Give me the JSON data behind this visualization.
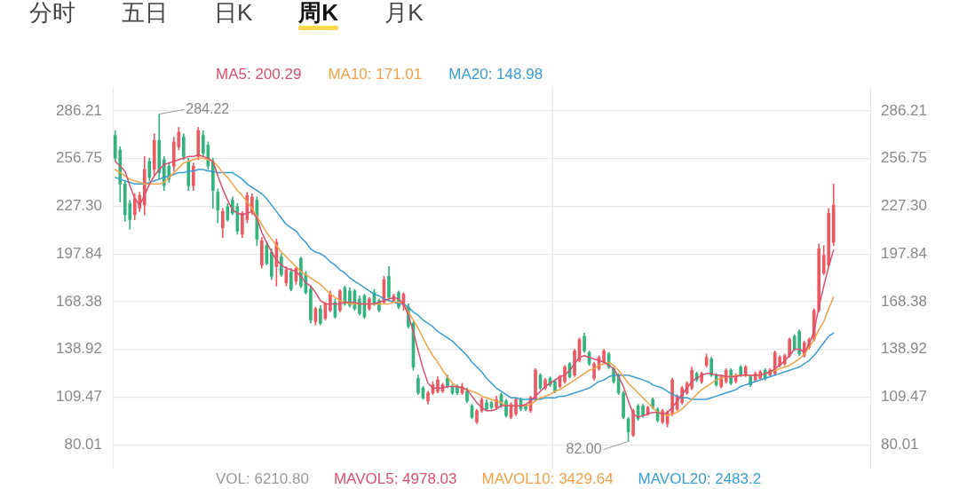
{
  "chart_data": {
    "type": "candlestick",
    "categories": [
      null,
      null,
      null,
      null,
      null,
      null,
      null,
      null,
      null,
      null,
      null,
      null,
      null,
      null,
      null,
      null,
      null,
      null,
      null,
      null,
      null,
      null,
      null,
      null,
      null,
      null,
      null,
      null,
      null,
      null,
      null,
      null,
      null,
      null,
      null,
      null,
      null,
      null,
      null,
      null,
      null,
      null,
      null,
      null,
      null,
      null,
      null,
      null,
      null,
      null,
      null,
      null,
      null,
      null,
      null,
      null,
      null,
      null,
      null,
      null,
      null,
      null,
      null,
      null,
      null,
      null,
      null,
      null,
      null,
      null,
      null,
      null,
      null,
      null,
      null,
      null,
      null,
      null,
      null,
      null,
      null,
      null,
      null,
      null,
      null,
      null,
      null,
      null,
      null,
      null,
      null,
      null,
      null,
      null,
      null,
      null,
      null,
      null,
      null,
      null,
      null,
      null,
      null,
      null,
      null,
      null,
      null,
      null,
      null,
      null,
      null,
      null,
      null,
      null,
      null,
      null,
      null,
      null,
      null,
      null,
      null,
      null,
      null,
      null,
      null,
      null,
      null,
      null,
      null,
      null,
      null,
      null,
      null,
      null,
      null,
      null,
      null,
      null,
      null,
      null,
      null,
      null,
      null,
      null,
      null,
      null,
      null,
      null,
      null,
      null,
      null,
      null,
      null,
      null,
      null
    ],
    "ohlc": [
      [
        271,
        274,
        255,
        257
      ],
      [
        262,
        264,
        230,
        241
      ],
      [
        241,
        243,
        218,
        222
      ],
      [
        229,
        231,
        213,
        219
      ],
      [
        222,
        235,
        219,
        232
      ],
      [
        226,
        236,
        224,
        234
      ],
      [
        228,
        258,
        222,
        250
      ],
      [
        255,
        257,
        243,
        245
      ],
      [
        250,
        272,
        246,
        268
      ],
      [
        268,
        284.22,
        244,
        248
      ],
      [
        256,
        258,
        237,
        240
      ],
      [
        252,
        254,
        242,
        244
      ],
      [
        252,
        270,
        249,
        267
      ],
      [
        264,
        276,
        262,
        273
      ],
      [
        270,
        272,
        256,
        258
      ],
      [
        255,
        257,
        237,
        240
      ],
      [
        240,
        254,
        237,
        252
      ],
      [
        258,
        276,
        256,
        274
      ],
      [
        271,
        274,
        258,
        260
      ],
      [
        265,
        267,
        250,
        252
      ],
      [
        255,
        257,
        226,
        237
      ],
      [
        236,
        238,
        217,
        225
      ],
      [
        214,
        226,
        208,
        224
      ],
      [
        227,
        229,
        218,
        219
      ],
      [
        231,
        233,
        222,
        223
      ],
      [
        227,
        229,
        210,
        212
      ],
      [
        210,
        224,
        208,
        223
      ],
      [
        219,
        236,
        217,
        234
      ],
      [
        224,
        235,
        222,
        233
      ],
      [
        231,
        233,
        203,
        207
      ],
      [
        191,
        208,
        189,
        206
      ],
      [
        203,
        205,
        191,
        192
      ],
      [
        199,
        201,
        182,
        184
      ],
      [
        190,
        207,
        178,
        205
      ],
      [
        196,
        198,
        184,
        185
      ],
      [
        180,
        190,
        178,
        188
      ],
      [
        187,
        189,
        175,
        176
      ],
      [
        181,
        190,
        179,
        189
      ],
      [
        195,
        196,
        177,
        178
      ],
      [
        185,
        187,
        173,
        174
      ],
      [
        176,
        178,
        155,
        157
      ],
      [
        156,
        165,
        154,
        164
      ],
      [
        164,
        166,
        154,
        155
      ],
      [
        158,
        168,
        157,
        167
      ],
      [
        163,
        175,
        162,
        173
      ],
      [
        168,
        170,
        158,
        159
      ],
      [
        163,
        176,
        162,
        175
      ],
      [
        177,
        178,
        166,
        167
      ],
      [
        175,
        177,
        165,
        166
      ],
      [
        175,
        176,
        163,
        164
      ],
      [
        170,
        172,
        160,
        161
      ],
      [
        172,
        173,
        158,
        159
      ],
      [
        164,
        171,
        163,
        170
      ],
      [
        174,
        176,
        166,
        167
      ],
      [
        169,
        170,
        162,
        163
      ],
      [
        168,
        184,
        167,
        182
      ],
      [
        184,
        190,
        170,
        171
      ],
      [
        169,
        173,
        168,
        172
      ],
      [
        174,
        175,
        164,
        165
      ],
      [
        166,
        174,
        163,
        173
      ],
      [
        165,
        167,
        152,
        153
      ],
      [
        155,
        156,
        126,
        128
      ],
      [
        121,
        123,
        111,
        112
      ],
      [
        115,
        116,
        108,
        109
      ],
      [
        107,
        113,
        105,
        112
      ],
      [
        112,
        119,
        111,
        117
      ],
      [
        113,
        122,
        112,
        120
      ],
      [
        113,
        118,
        112,
        117
      ],
      [
        121,
        123,
        115,
        116
      ],
      [
        116,
        117,
        111,
        112
      ],
      [
        116,
        117,
        111,
        112
      ],
      [
        112,
        118,
        111,
        116
      ],
      [
        113,
        115,
        106,
        107
      ],
      [
        104,
        105,
        96,
        97
      ],
      [
        94,
        102,
        93,
        101
      ],
      [
        101,
        109,
        100,
        108
      ],
      [
        106,
        108,
        101,
        102
      ],
      [
        106,
        107,
        102,
        103
      ],
      [
        103,
        110,
        102,
        108
      ],
      [
        111,
        112,
        103,
        104
      ],
      [
        107,
        108,
        97,
        98
      ],
      [
        97,
        106,
        96,
        105
      ],
      [
        99,
        109,
        98,
        108
      ],
      [
        108,
        109,
        101,
        102
      ],
      [
        104,
        105,
        101,
        102
      ],
      [
        101,
        110,
        100,
        109
      ],
      [
        108,
        127,
        107,
        126
      ],
      [
        123,
        124,
        114,
        115
      ],
      [
        115,
        121,
        114,
        120
      ],
      [
        121,
        122,
        116,
        117
      ],
      [
        119,
        120,
        112,
        113
      ],
      [
        116,
        123,
        115,
        122
      ],
      [
        119,
        129,
        118,
        128
      ],
      [
        130,
        131,
        121,
        122
      ],
      [
        123,
        139,
        122,
        138
      ],
      [
        132,
        146,
        131,
        145
      ],
      [
        147,
        149,
        137,
        138
      ],
      [
        137,
        138,
        129,
        130
      ],
      [
        121,
        131,
        120,
        130
      ],
      [
        127,
        135,
        126,
        134
      ],
      [
        131,
        139,
        130,
        138
      ],
      [
        136,
        137,
        127,
        128
      ],
      [
        127,
        128,
        118,
        119
      ],
      [
        123,
        124,
        111,
        112
      ],
      [
        112,
        113,
        96,
        97
      ],
      [
        96,
        97,
        82.0,
        88
      ],
      [
        86,
        102,
        85,
        101
      ],
      [
        104,
        105,
        95,
        96
      ],
      [
        104,
        105,
        97,
        98
      ],
      [
        99,
        104,
        98,
        103
      ],
      [
        108,
        109,
        102,
        103
      ],
      [
        102,
        103,
        94,
        95
      ],
      [
        94,
        102,
        93,
        101
      ],
      [
        93,
        101,
        91,
        100
      ],
      [
        99,
        121,
        98,
        120
      ],
      [
        102,
        111,
        101,
        110
      ],
      [
        106,
        116,
        105,
        115
      ],
      [
        112,
        119,
        111,
        118
      ],
      [
        115,
        128,
        114,
        126
      ],
      [
        124,
        125,
        119,
        120
      ],
      [
        119,
        125,
        118,
        124
      ],
      [
        129,
        136,
        128,
        134
      ],
      [
        133,
        134,
        122,
        123
      ],
      [
        123,
        124,
        116,
        117
      ],
      [
        116,
        123,
        115,
        122
      ],
      [
        119,
        127,
        118,
        126
      ],
      [
        126,
        127,
        117,
        118
      ],
      [
        119,
        124,
        118,
        123
      ],
      [
        128,
        129,
        122,
        123
      ],
      [
        123,
        129,
        122,
        128
      ],
      [
        122,
        123,
        116,
        117
      ],
      [
        120,
        125,
        119,
        124
      ],
      [
        121,
        126,
        120,
        125
      ],
      [
        126,
        127,
        120,
        121
      ],
      [
        123,
        127,
        122,
        126
      ],
      [
        124,
        138,
        123,
        137
      ],
      [
        129,
        135,
        128,
        134
      ],
      [
        130,
        136,
        129,
        135
      ],
      [
        135,
        146,
        134,
        145
      ],
      [
        147,
        148,
        138,
        139
      ],
      [
        150,
        151,
        135,
        136
      ],
      [
        135,
        144,
        134,
        143
      ],
      [
        140,
        146,
        139,
        145
      ],
      [
        145,
        164,
        144,
        163
      ],
      [
        163,
        204,
        162,
        201
      ],
      [
        186,
        203,
        185,
        197
      ],
      [
        191,
        226,
        190,
        223
      ],
      [
        205,
        241,
        203,
        228
      ],
      null,
      null,
      null,
      null,
      null,
      null,
      null
    ],
    "colors": [
      "#33b37e",
      "#33b37e",
      "#33b37e",
      "#33b37e",
      "#eb5a63",
      "#eb5a63",
      "#eb5a63",
      "#33b37e",
      "#eb5a63",
      "#33b37e",
      "#33b37e",
      "#33b37e",
      "#eb5a63",
      "#eb5a63",
      "#33b37e",
      "#33b37e",
      "#eb5a63",
      "#eb5a63",
      "#33b37e",
      "#33b37e",
      "#33b37e",
      "#33b37e",
      "#eb5a63",
      "#33b37e",
      "#33b37e",
      "#33b37e",
      "#eb5a63",
      "#eb5a63",
      "#eb5a63",
      "#33b37e",
      "#eb5a63",
      "#33b37e",
      "#33b37e",
      "#eb5a63",
      "#33b37e",
      "#eb5a63",
      "#33b37e",
      "#eb5a63",
      "#33b37e",
      "#33b37e",
      "#33b37e",
      "#eb5a63",
      "#33b37e",
      "#eb5a63",
      "#eb5a63",
      "#33b37e",
      "#eb5a63",
      "#33b37e",
      "#33b37e",
      "#33b37e",
      "#33b37e",
      "#33b37e",
      "#eb5a63",
      "#33b37e",
      "#33b37e",
      "#eb5a63",
      "#33b37e",
      "#eb5a63",
      "#33b37e",
      "#eb5a63",
      "#33b37e",
      "#33b37e",
      "#33b37e",
      "#33b37e",
      "#eb5a63",
      "#eb5a63",
      "#eb5a63",
      "#eb5a63",
      "#33b37e",
      "#33b37e",
      "#33b37e",
      "#eb5a63",
      "#33b37e",
      "#33b37e",
      "#eb5a63",
      "#eb5a63",
      "#33b37e",
      "#33b37e",
      "#eb5a63",
      "#33b37e",
      "#33b37e",
      "#eb5a63",
      "#eb5a63",
      "#33b37e",
      "#33b37e",
      "#eb5a63",
      "#eb5a63",
      "#33b37e",
      "#eb5a63",
      "#33b37e",
      "#33b37e",
      "#eb5a63",
      "#eb5a63",
      "#33b37e",
      "#eb5a63",
      "#eb5a63",
      "#33b37e",
      "#33b37e",
      "#eb5a63",
      "#eb5a63",
      "#eb5a63",
      "#33b37e",
      "#33b37e",
      "#33b37e",
      "#33b37e",
      "#33b37e",
      "#eb5a63",
      "#33b37e",
      "#33b37e",
      "#eb5a63",
      "#33b37e",
      "#33b37e",
      "#eb5a63",
      "#eb5a63",
      "#eb5a63",
      "#eb5a63",
      "#eb5a63",
      "#eb5a63",
      "#eb5a63",
      "#33b37e",
      "#eb5a63",
      "#eb5a63",
      "#33b37e",
      "#33b37e",
      "#eb5a63",
      "#eb5a63",
      "#33b37e",
      "#eb5a63",
      "#33b37e",
      "#eb5a63",
      "#33b37e",
      "#eb5a63",
      "#eb5a63",
      "#33b37e",
      "#eb5a63",
      "#eb5a63",
      "#eb5a63",
      "#eb5a63",
      "#eb5a63",
      "#33b37e",
      "#33b37e",
      "#eb5a63",
      "#eb5a63",
      "#eb5a63",
      "#eb5a63",
      "#eb5a63",
      "#eb5a63",
      "#eb5a63",
      null,
      null,
      null,
      null,
      null,
      null,
      null
    ],
    "series": [
      {
        "name": "MA5: 200.29",
        "type": "line",
        "color": "#d9506f",
        "values": [
          255,
          252,
          249,
          240,
          232,
          228,
          234,
          241,
          246,
          250,
          253,
          254,
          255,
          256,
          257,
          258,
          258,
          259,
          258,
          257,
          255,
          246,
          238,
          231,
          225,
          223,
          222,
          223,
          224,
          220,
          211,
          205,
          199,
          194,
          191,
          189,
          188,
          187,
          184,
          180,
          178,
          174,
          169,
          167,
          167,
          167,
          167,
          168,
          168,
          168,
          167,
          167,
          167,
          167,
          168,
          169,
          170,
          171,
          170,
          167,
          160,
          150,
          138,
          127,
          118,
          115,
          115,
          115,
          116,
          116,
          116,
          115,
          114,
          110,
          106,
          103,
          101,
          101,
          102,
          104,
          104,
          104,
          104,
          104,
          105,
          107,
          110,
          113,
          116,
          118,
          120,
          122,
          123,
          126,
          130,
          134,
          135,
          134,
          133,
          132,
          131,
          129,
          127,
          122,
          116,
          107,
          99,
          97,
          98,
          99,
          100,
          100,
          99,
          100,
          103,
          107,
          111,
          115,
          119,
          121,
          123,
          124,
          124,
          123,
          123,
          122,
          122,
          122,
          123,
          123,
          123,
          123,
          123,
          124,
          125,
          127,
          129,
          132,
          135,
          139,
          139,
          137,
          142,
          150,
          165,
          178,
          190,
          200.29,
          null,
          null,
          null,
          null,
          null,
          null,
          null
        ]
      },
      {
        "name": "MA10: 171.01",
        "type": "line",
        "color": "#f3a247",
        "values": [
          250,
          248,
          246,
          244,
          243,
          242,
          241,
          241,
          241,
          241,
          242,
          245,
          248,
          251,
          254,
          255,
          256,
          257,
          257,
          256,
          255,
          252,
          248,
          245,
          241,
          237,
          234,
          230,
          226,
          221,
          216,
          211,
          207,
          203,
          199,
          196,
          193,
          190,
          187,
          185,
          183,
          181,
          179,
          176,
          173,
          171,
          169,
          168,
          167,
          167,
          167,
          167,
          167,
          167,
          167,
          167,
          167,
          168,
          168,
          167,
          162,
          157,
          152,
          146,
          140,
          135,
          131,
          126,
          122,
          118,
          116,
          115,
          114,
          113,
          112,
          110,
          109,
          108,
          107,
          106,
          104,
          104,
          104,
          104,
          104,
          105,
          107,
          109,
          110,
          111,
          113,
          114,
          116,
          118,
          120,
          122,
          124,
          126,
          127,
          129,
          130,
          131,
          129,
          126,
          122,
          118,
          115,
          112,
          109,
          106,
          103,
          100,
          99,
          98,
          99,
          100,
          102,
          105,
          108,
          111,
          114,
          116,
          118,
          120,
          121,
          122,
          122,
          123,
          123,
          123,
          123,
          123,
          123,
          124,
          125,
          126,
          127,
          128,
          129,
          131,
          133,
          136,
          140,
          145,
          151,
          156,
          164,
          171.01,
          null,
          null,
          null,
          null,
          null,
          null,
          null
        ]
      },
      {
        "name": "MA20: 148.98",
        "type": "line",
        "color": "#3a9ed3",
        "values": [
          245,
          244,
          243,
          242,
          241,
          241,
          241,
          242,
          243,
          244,
          245,
          246,
          247,
          248,
          248,
          249,
          249,
          250,
          250,
          249,
          249,
          248,
          248,
          248,
          248,
          246,
          244,
          241,
          239,
          237,
          235,
          232,
          228,
          224,
          220,
          216,
          214,
          212,
          208,
          205,
          201,
          199,
          198,
          196,
          193,
          191,
          188,
          186,
          183,
          181,
          179,
          177,
          175,
          173,
          172,
          170,
          169,
          168,
          167,
          167,
          165,
          162,
          160,
          157,
          155,
          153,
          150,
          148,
          146,
          144,
          141,
          138,
          135,
          131,
          128,
          125,
          121,
          118,
          115,
          113,
          111,
          109,
          109,
          108,
          108,
          108,
          108,
          108,
          109,
          109,
          109,
          110,
          110,
          111,
          112,
          113,
          114,
          115,
          117,
          119,
          120,
          122,
          123,
          123,
          123,
          123,
          122,
          121,
          120,
          119,
          117,
          116,
          115,
          113,
          111,
          110,
          109,
          109,
          108,
          108,
          108,
          108,
          109,
          110,
          111,
          112,
          113,
          114,
          116,
          117,
          118,
          119,
          120,
          121,
          122,
          123,
          124,
          125,
          126,
          127,
          128,
          130,
          132,
          135,
          139,
          143,
          147,
          148.98,
          null,
          null,
          null,
          null,
          null,
          null,
          null
        ]
      }
    ],
    "ylim": [
      65.28,
      300.94
    ],
    "yticks": [
      80.01,
      109.47,
      138.92,
      168.38,
      197.84,
      {
        "value": 227.3,
        "label": "227.30"
      },
      256.75,
      286.21
    ],
    "y2lim": [
      65.28,
      300.94
    ],
    "y2ticks": [
      80.01,
      109.47,
      138.92,
      168.38,
      197.84,
      {
        "value": 227.3,
        "label": "227.30"
      },
      256.75,
      286.21
    ],
    "grid": "y",
    "legend": "top",
    "tick_labels": "y",
    "marker": "none",
    "annotations": [
      "分时",
      "五日",
      "日K",
      "周K",
      "月K",
      "284.22",
      "82.00",
      "VOL: 6210.80",
      "MAVOL5: 4978.03",
      "MAVOL10: 3429.64",
      "MAVOL20: 2483.2"
    ]
  }
}
